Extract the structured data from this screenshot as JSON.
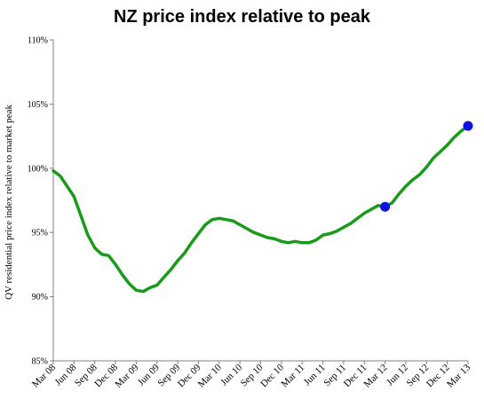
{
  "chart_data": {
    "type": "line",
    "title": "NZ price index relative to peak",
    "ylabel": "QV residential price index relative to market peak",
    "xlabel": "",
    "ylim": [
      85,
      110
    ],
    "yticks": [
      "85%",
      "90%",
      "95%",
      "100%",
      "105%",
      "110%"
    ],
    "ytick_values": [
      85,
      90,
      95,
      100,
      105,
      110
    ],
    "grid": false,
    "legend": "none",
    "x_tick_labels": [
      "Mar 08",
      "Jun 08",
      "Sep 08",
      "Dec 08",
      "Mar 09",
      "Jun 09",
      "Sep 09",
      "Dec 09",
      "Mar 10",
      "Jun 10",
      "Sep 10",
      "Dec 10",
      "Mar 11",
      "Jun 11",
      "Sep 11",
      "Dec 11",
      "Mar 12",
      "Jun 12",
      "Sep 12",
      "Dec 12",
      "Mar 13"
    ],
    "x": [
      "2008-03",
      "2008-04",
      "2008-05",
      "2008-06",
      "2008-07",
      "2008-08",
      "2008-09",
      "2008-10",
      "2008-11",
      "2008-12",
      "2009-01",
      "2009-02",
      "2009-03",
      "2009-04",
      "2009-05",
      "2009-06",
      "2009-07",
      "2009-08",
      "2009-09",
      "2009-10",
      "2009-11",
      "2009-12",
      "2010-01",
      "2010-02",
      "2010-03",
      "2010-04",
      "2010-05",
      "2010-06",
      "2010-07",
      "2010-08",
      "2010-09",
      "2010-10",
      "2010-11",
      "2010-12",
      "2011-01",
      "2011-02",
      "2011-03",
      "2011-04",
      "2011-05",
      "2011-06",
      "2011-07",
      "2011-08",
      "2011-09",
      "2011-10",
      "2011-11",
      "2011-12",
      "2012-01",
      "2012-02",
      "2012-03",
      "2012-04",
      "2012-05",
      "2012-06",
      "2012-07",
      "2012-08",
      "2012-09",
      "2012-10",
      "2012-11",
      "2012-12",
      "2013-01",
      "2013-02",
      "2013-03"
    ],
    "series": [
      {
        "color": "#1a9a1a",
        "values": [
          99.8,
          99.4,
          98.6,
          97.8,
          96.3,
          94.8,
          93.8,
          93.3,
          93.2,
          92.5,
          91.7,
          91.0,
          90.5,
          90.4,
          90.7,
          90.9,
          91.5,
          92.1,
          92.8,
          93.4,
          94.2,
          94.9,
          95.6,
          96.0,
          96.1,
          96.0,
          95.9,
          95.6,
          95.3,
          95.0,
          94.8,
          94.6,
          94.5,
          94.3,
          94.2,
          94.3,
          94.2,
          94.2,
          94.4,
          94.8,
          94.9,
          95.1,
          95.4,
          95.7,
          96.1,
          96.5,
          96.8,
          97.1,
          97.0,
          97.3,
          98.0,
          98.6,
          99.1,
          99.5,
          100.1,
          100.8,
          101.3,
          101.8,
          102.4,
          102.9,
          103.3
        ]
      }
    ],
    "markers": [
      {
        "x": "2012-03",
        "y": 97.0,
        "color": "#1010e0"
      },
      {
        "x": "2013-03",
        "y": 103.3,
        "color": "#1010e0"
      }
    ],
    "axis_color": "#808080"
  }
}
